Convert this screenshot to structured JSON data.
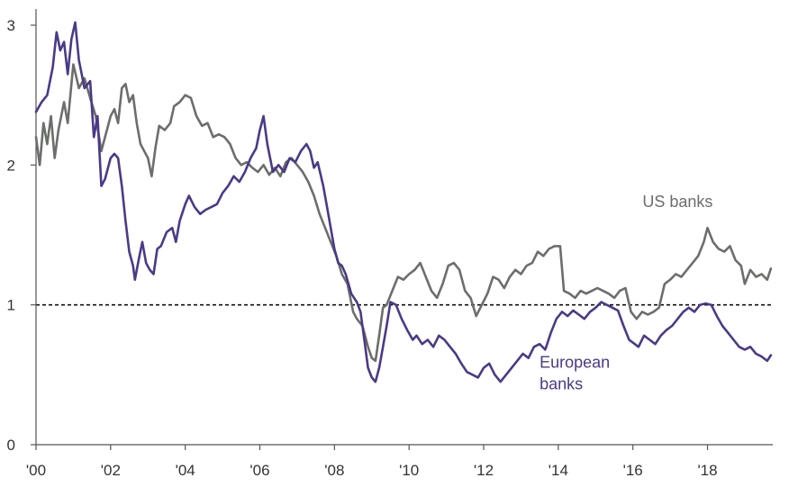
{
  "chart_data": {
    "type": "line",
    "title": "",
    "xlabel": "",
    "ylabel": "",
    "xlim": [
      2000,
      2019.75
    ],
    "ylim": [
      0,
      3
    ],
    "x_ticks": [
      {
        "value": 2000,
        "label": "'00"
      },
      {
        "value": 2002,
        "label": "'02"
      },
      {
        "value": 2004,
        "label": "'04"
      },
      {
        "value": 2006,
        "label": "'06"
      },
      {
        "value": 2008,
        "label": "'08"
      },
      {
        "value": 2010,
        "label": "'10"
      },
      {
        "value": 2012,
        "label": "'12"
      },
      {
        "value": 2014,
        "label": "'14"
      },
      {
        "value": 2016,
        "label": "'16"
      },
      {
        "value": 2018,
        "label": "'18"
      }
    ],
    "y_ticks": [
      {
        "value": 0,
        "label": "0"
      },
      {
        "value": 1,
        "label": "1"
      },
      {
        "value": 2,
        "label": "2"
      },
      {
        "value": 3,
        "label": "3"
      }
    ],
    "reference_line": {
      "y": 1,
      "style": "dashed"
    },
    "grid": false,
    "series": [
      {
        "name": "US banks",
        "label_lines": [
          "US banks"
        ],
        "color": "#6b6e6a",
        "points": [
          [
            2000.0,
            2.2
          ],
          [
            2000.1,
            2.0
          ],
          [
            2000.2,
            2.3
          ],
          [
            2000.3,
            2.15
          ],
          [
            2000.4,
            2.35
          ],
          [
            2000.5,
            2.05
          ],
          [
            2000.6,
            2.25
          ],
          [
            2000.75,
            2.45
          ],
          [
            2000.85,
            2.3
          ],
          [
            2001.0,
            2.72
          ],
          [
            2001.15,
            2.55
          ],
          [
            2001.3,
            2.62
          ],
          [
            2001.45,
            2.48
          ],
          [
            2001.6,
            2.35
          ],
          [
            2001.75,
            2.1
          ],
          [
            2001.9,
            2.25
          ],
          [
            2002.0,
            2.35
          ],
          [
            2002.1,
            2.4
          ],
          [
            2002.2,
            2.3
          ],
          [
            2002.3,
            2.55
          ],
          [
            2002.4,
            2.58
          ],
          [
            2002.5,
            2.45
          ],
          [
            2002.6,
            2.5
          ],
          [
            2002.7,
            2.3
          ],
          [
            2002.8,
            2.15
          ],
          [
            2002.9,
            2.1
          ],
          [
            2003.0,
            2.05
          ],
          [
            2003.1,
            1.92
          ],
          [
            2003.2,
            2.12
          ],
          [
            2003.3,
            2.28
          ],
          [
            2003.45,
            2.25
          ],
          [
            2003.6,
            2.3
          ],
          [
            2003.7,
            2.42
          ],
          [
            2003.85,
            2.45
          ],
          [
            2004.0,
            2.5
          ],
          [
            2004.15,
            2.48
          ],
          [
            2004.3,
            2.35
          ],
          [
            2004.45,
            2.28
          ],
          [
            2004.6,
            2.3
          ],
          [
            2004.75,
            2.2
          ],
          [
            2004.9,
            2.22
          ],
          [
            2005.05,
            2.2
          ],
          [
            2005.2,
            2.15
          ],
          [
            2005.35,
            2.05
          ],
          [
            2005.5,
            2.0
          ],
          [
            2005.65,
            2.02
          ],
          [
            2005.8,
            1.98
          ],
          [
            2005.95,
            1.95
          ],
          [
            2006.1,
            2.0
          ],
          [
            2006.25,
            1.93
          ],
          [
            2006.4,
            1.98
          ],
          [
            2006.55,
            1.92
          ],
          [
            2006.7,
            2.02
          ],
          [
            2006.85,
            2.05
          ],
          [
            2007.0,
            2.0
          ],
          [
            2007.15,
            1.95
          ],
          [
            2007.3,
            1.88
          ],
          [
            2007.45,
            1.78
          ],
          [
            2007.6,
            1.65
          ],
          [
            2007.75,
            1.55
          ],
          [
            2007.9,
            1.45
          ],
          [
            2008.05,
            1.35
          ],
          [
            2008.2,
            1.22
          ],
          [
            2008.35,
            1.15
          ],
          [
            2008.5,
            0.95
          ],
          [
            2008.6,
            0.9
          ],
          [
            2008.75,
            0.85
          ],
          [
            2008.9,
            0.7
          ],
          [
            2009.0,
            0.62
          ],
          [
            2009.1,
            0.6
          ],
          [
            2009.2,
            0.78
          ],
          [
            2009.3,
            0.98
          ],
          [
            2009.4,
            1.0
          ],
          [
            2009.55,
            1.1
          ],
          [
            2009.7,
            1.2
          ],
          [
            2009.85,
            1.18
          ],
          [
            2010.0,
            1.22
          ],
          [
            2010.15,
            1.25
          ],
          [
            2010.3,
            1.3
          ],
          [
            2010.45,
            1.2
          ],
          [
            2010.6,
            1.1
          ],
          [
            2010.75,
            1.05
          ],
          [
            2010.9,
            1.15
          ],
          [
            2011.05,
            1.28
          ],
          [
            2011.2,
            1.3
          ],
          [
            2011.35,
            1.25
          ],
          [
            2011.5,
            1.1
          ],
          [
            2011.65,
            1.05
          ],
          [
            2011.8,
            0.92
          ],
          [
            2011.95,
            1.0
          ],
          [
            2012.1,
            1.08
          ],
          [
            2012.25,
            1.2
          ],
          [
            2012.4,
            1.18
          ],
          [
            2012.55,
            1.12
          ],
          [
            2012.7,
            1.2
          ],
          [
            2012.85,
            1.25
          ],
          [
            2013.0,
            1.22
          ],
          [
            2013.15,
            1.28
          ],
          [
            2013.3,
            1.3
          ],
          [
            2013.45,
            1.38
          ],
          [
            2013.6,
            1.35
          ],
          [
            2013.75,
            1.4
          ],
          [
            2013.9,
            1.42
          ],
          [
            2014.05,
            1.42
          ],
          [
            2014.15,
            1.1
          ],
          [
            2014.3,
            1.08
          ],
          [
            2014.45,
            1.05
          ],
          [
            2014.6,
            1.1
          ],
          [
            2014.75,
            1.08
          ],
          [
            2014.9,
            1.1
          ],
          [
            2015.05,
            1.12
          ],
          [
            2015.2,
            1.1
          ],
          [
            2015.35,
            1.08
          ],
          [
            2015.5,
            1.05
          ],
          [
            2015.65,
            1.1
          ],
          [
            2015.8,
            1.12
          ],
          [
            2015.95,
            0.95
          ],
          [
            2016.1,
            0.9
          ],
          [
            2016.25,
            0.95
          ],
          [
            2016.4,
            0.93
          ],
          [
            2016.55,
            0.95
          ],
          [
            2016.7,
            0.98
          ],
          [
            2016.85,
            1.15
          ],
          [
            2017.0,
            1.18
          ],
          [
            2017.15,
            1.22
          ],
          [
            2017.3,
            1.2
          ],
          [
            2017.45,
            1.25
          ],
          [
            2017.6,
            1.3
          ],
          [
            2017.75,
            1.35
          ],
          [
            2017.9,
            1.45
          ],
          [
            2018.0,
            1.55
          ],
          [
            2018.15,
            1.45
          ],
          [
            2018.3,
            1.4
          ],
          [
            2018.45,
            1.38
          ],
          [
            2018.6,
            1.42
          ],
          [
            2018.75,
            1.32
          ],
          [
            2018.9,
            1.28
          ],
          [
            2019.0,
            1.15
          ],
          [
            2019.15,
            1.25
          ],
          [
            2019.3,
            1.2
          ],
          [
            2019.45,
            1.22
          ],
          [
            2019.6,
            1.18
          ],
          [
            2019.7,
            1.26
          ]
        ]
      },
      {
        "name": "European banks",
        "label_lines": [
          "European",
          "banks"
        ],
        "color": "#4a3a87",
        "points": [
          [
            2000.0,
            2.38
          ],
          [
            2000.15,
            2.45
          ],
          [
            2000.3,
            2.5
          ],
          [
            2000.45,
            2.7
          ],
          [
            2000.55,
            2.95
          ],
          [
            2000.65,
            2.82
          ],
          [
            2000.75,
            2.88
          ],
          [
            2000.85,
            2.65
          ],
          [
            2000.95,
            2.9
          ],
          [
            2001.05,
            3.02
          ],
          [
            2001.15,
            2.75
          ],
          [
            2001.3,
            2.55
          ],
          [
            2001.45,
            2.6
          ],
          [
            2001.55,
            2.2
          ],
          [
            2001.65,
            2.35
          ],
          [
            2001.75,
            1.85
          ],
          [
            2001.85,
            1.9
          ],
          [
            2002.0,
            2.05
          ],
          [
            2002.1,
            2.08
          ],
          [
            2002.2,
            2.05
          ],
          [
            2002.3,
            1.85
          ],
          [
            2002.4,
            1.6
          ],
          [
            2002.5,
            1.38
          ],
          [
            2002.6,
            1.28
          ],
          [
            2002.65,
            1.18
          ],
          [
            2002.75,
            1.32
          ],
          [
            2002.85,
            1.45
          ],
          [
            2002.95,
            1.3
          ],
          [
            2003.05,
            1.25
          ],
          [
            2003.15,
            1.22
          ],
          [
            2003.25,
            1.4
          ],
          [
            2003.35,
            1.42
          ],
          [
            2003.5,
            1.52
          ],
          [
            2003.65,
            1.55
          ],
          [
            2003.75,
            1.45
          ],
          [
            2003.85,
            1.6
          ],
          [
            2004.0,
            1.72
          ],
          [
            2004.1,
            1.78
          ],
          [
            2004.25,
            1.7
          ],
          [
            2004.4,
            1.65
          ],
          [
            2004.55,
            1.68
          ],
          [
            2004.7,
            1.7
          ],
          [
            2004.85,
            1.72
          ],
          [
            2005.0,
            1.8
          ],
          [
            2005.15,
            1.85
          ],
          [
            2005.3,
            1.92
          ],
          [
            2005.45,
            1.88
          ],
          [
            2005.6,
            1.95
          ],
          [
            2005.75,
            2.05
          ],
          [
            2005.9,
            2.12
          ],
          [
            2006.0,
            2.25
          ],
          [
            2006.1,
            2.35
          ],
          [
            2006.2,
            2.15
          ],
          [
            2006.35,
            1.95
          ],
          [
            2006.5,
            2.0
          ],
          [
            2006.65,
            1.95
          ],
          [
            2006.8,
            2.05
          ],
          [
            2006.95,
            2.02
          ],
          [
            2007.1,
            2.1
          ],
          [
            2007.25,
            2.15
          ],
          [
            2007.35,
            2.1
          ],
          [
            2007.45,
            1.98
          ],
          [
            2007.55,
            2.02
          ],
          [
            2007.7,
            1.85
          ],
          [
            2007.8,
            1.7
          ],
          [
            2007.9,
            1.55
          ],
          [
            2008.0,
            1.4
          ],
          [
            2008.1,
            1.3
          ],
          [
            2008.2,
            1.28
          ],
          [
            2008.3,
            1.22
          ],
          [
            2008.45,
            1.08
          ],
          [
            2008.6,
            1.02
          ],
          [
            2008.7,
            0.95
          ],
          [
            2008.8,
            0.75
          ],
          [
            2008.9,
            0.55
          ],
          [
            2009.0,
            0.48
          ],
          [
            2009.1,
            0.45
          ],
          [
            2009.2,
            0.55
          ],
          [
            2009.3,
            0.7
          ],
          [
            2009.4,
            0.85
          ],
          [
            2009.5,
            1.02
          ],
          [
            2009.65,
            1.0
          ],
          [
            2009.8,
            0.9
          ],
          [
            2009.95,
            0.82
          ],
          [
            2010.1,
            0.75
          ],
          [
            2010.2,
            0.78
          ],
          [
            2010.35,
            0.72
          ],
          [
            2010.5,
            0.75
          ],
          [
            2010.65,
            0.7
          ],
          [
            2010.8,
            0.78
          ],
          [
            2010.95,
            0.75
          ],
          [
            2011.1,
            0.7
          ],
          [
            2011.25,
            0.65
          ],
          [
            2011.4,
            0.58
          ],
          [
            2011.55,
            0.52
          ],
          [
            2011.7,
            0.5
          ],
          [
            2011.85,
            0.48
          ],
          [
            2012.0,
            0.55
          ],
          [
            2012.15,
            0.58
          ],
          [
            2012.3,
            0.5
          ],
          [
            2012.45,
            0.45
          ],
          [
            2012.6,
            0.5
          ],
          [
            2012.75,
            0.55
          ],
          [
            2012.9,
            0.6
          ],
          [
            2013.05,
            0.65
          ],
          [
            2013.2,
            0.62
          ],
          [
            2013.35,
            0.7
          ],
          [
            2013.5,
            0.72
          ],
          [
            2013.65,
            0.68
          ],
          [
            2013.8,
            0.8
          ],
          [
            2013.95,
            0.9
          ],
          [
            2014.1,
            0.95
          ],
          [
            2014.25,
            0.92
          ],
          [
            2014.4,
            0.96
          ],
          [
            2014.55,
            0.93
          ],
          [
            2014.7,
            0.9
          ],
          [
            2014.85,
            0.95
          ],
          [
            2015.0,
            0.98
          ],
          [
            2015.15,
            1.02
          ],
          [
            2015.3,
            1.0
          ],
          [
            2015.45,
            0.98
          ],
          [
            2015.6,
            0.96
          ],
          [
            2015.75,
            0.85
          ],
          [
            2015.9,
            0.75
          ],
          [
            2016.05,
            0.72
          ],
          [
            2016.15,
            0.7
          ],
          [
            2016.3,
            0.78
          ],
          [
            2016.45,
            0.75
          ],
          [
            2016.6,
            0.72
          ],
          [
            2016.75,
            0.78
          ],
          [
            2016.9,
            0.82
          ],
          [
            2017.05,
            0.85
          ],
          [
            2017.2,
            0.9
          ],
          [
            2017.35,
            0.95
          ],
          [
            2017.5,
            0.98
          ],
          [
            2017.65,
            0.95
          ],
          [
            2017.8,
            1.0
          ],
          [
            2017.95,
            1.01
          ],
          [
            2018.1,
            1.0
          ],
          [
            2018.25,
            0.92
          ],
          [
            2018.4,
            0.85
          ],
          [
            2018.55,
            0.8
          ],
          [
            2018.7,
            0.75
          ],
          [
            2018.85,
            0.7
          ],
          [
            2019.0,
            0.68
          ],
          [
            2019.15,
            0.7
          ],
          [
            2019.3,
            0.65
          ],
          [
            2019.45,
            0.63
          ],
          [
            2019.6,
            0.6
          ],
          [
            2019.7,
            0.64
          ]
        ]
      }
    ]
  }
}
